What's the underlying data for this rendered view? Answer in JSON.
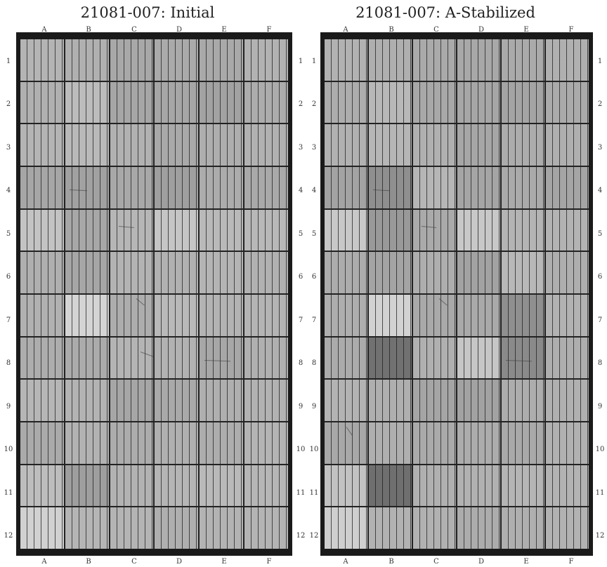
{
  "panels": [
    {
      "id": "initial",
      "title": "21081-007: Initial",
      "columns": [
        "A",
        "B",
        "C",
        "D",
        "E",
        "F"
      ],
      "rows": [
        "1",
        "2",
        "3",
        "4",
        "5",
        "6",
        "7",
        "8",
        "9",
        "10",
        "11",
        "12"
      ],
      "cell_shades": [
        [
          "#b4b4b4",
          "#b0b0b0",
          "#a8a8a8",
          "#aaaaaa",
          "#a9a9a9",
          "#b2b2b2"
        ],
        [
          "#b0b0b0",
          "#bcbcbc",
          "#a6a6a6",
          "#a6a6a6",
          "#a2a2a2",
          "#acacac"
        ],
        [
          "#b4b4b4",
          "#b9b9b9",
          "#b1b1b1",
          "#a9a9a9",
          "#aeaeae",
          "#b1b1b1"
        ],
        [
          "#a6a6a6",
          "#a1a1a1",
          "#a8a8a8",
          "#9f9f9f",
          "#acacac",
          "#a9a9a9"
        ],
        [
          "#c3c3c3",
          "#a7a7a7",
          "#b6b6b6",
          "#c5c5c5",
          "#b9b9b9",
          "#b8b8b8"
        ],
        [
          "#afafaf",
          "#a6a6a6",
          "#b3b3b3",
          "#b1b1b1",
          "#b4b4b4",
          "#b1b1b1"
        ],
        [
          "#b1b1b1",
          "#d4d4d4",
          "#adadad",
          "#b9b9b9",
          "#b3b3b3",
          "#b4b4b4"
        ],
        [
          "#adadad",
          "#ababab",
          "#b4b4b4",
          "#b2b2b2",
          "#a7a7a7",
          "#b0b0b0"
        ],
        [
          "#b6b6b6",
          "#b3b3b3",
          "#a6a6a6",
          "#a9a9a9",
          "#afafaf",
          "#b2b2b2"
        ],
        [
          "#aaaaaa",
          "#b2b2b2",
          "#acacac",
          "#b0b0b0",
          "#adadad",
          "#b4b4b4"
        ],
        [
          "#bdbdbd",
          "#9e9e9e",
          "#b2b2b2",
          "#b5b5b5",
          "#b9b9b9",
          "#b6b6b6"
        ],
        [
          "#d1d1d1",
          "#b5b5b5",
          "#b4b4b4",
          "#afafaf",
          "#b3b3b3",
          "#b4b4b4"
        ]
      ]
    },
    {
      "id": "a-stabilized",
      "title": "21081-007: A-Stabilized",
      "columns": [
        "A",
        "B",
        "C",
        "D",
        "E",
        "F"
      ],
      "rows": [
        "1",
        "2",
        "3",
        "4",
        "5",
        "6",
        "7",
        "8",
        "9",
        "10",
        "11",
        "12"
      ],
      "cell_shades": [
        [
          "#b2b2b2",
          "#afafaf",
          "#aaaaaa",
          "#a8a8a8",
          "#aaaaaa",
          "#b0b0b0"
        ],
        [
          "#adadad",
          "#b8b8b8",
          "#a8a8a8",
          "#a6a6a6",
          "#a4a4a4",
          "#aaaaaa"
        ],
        [
          "#b1b1b1",
          "#b6b6b6",
          "#b0b0b0",
          "#a6a6a6",
          "#acacac",
          "#afafaf"
        ],
        [
          "#a3a3a3",
          "#8f8f8f",
          "#b6b6b6",
          "#a5a5a5",
          "#aaaaaa",
          "#a5a5a5"
        ],
        [
          "#c8c8c8",
          "#999999",
          "#aaaaaa",
          "#c8c8c8",
          "#b4b4b4",
          "#b3b3b3"
        ],
        [
          "#acacac",
          "#a4a4a4",
          "#aeaeae",
          "#a2a2a2",
          "#b8b8b8",
          "#aeaeae"
        ],
        [
          "#aeaeae",
          "#d2d2d2",
          "#a9a9a9",
          "#a9a9a9",
          "#8f8f8f",
          "#b2b2b2"
        ],
        [
          "#ababab",
          "#717171",
          "#b0b0b0",
          "#c6c6c6",
          "#8a8a8a",
          "#aeaeae"
        ],
        [
          "#b3b3b3",
          "#afafaf",
          "#a5a5a5",
          "#a2a2a2",
          "#adadad",
          "#b0b0b0"
        ],
        [
          "#a8a8a8",
          "#afafaf",
          "#aaaaaa",
          "#acacac",
          "#a9a9a9",
          "#b1b1b1"
        ],
        [
          "#c2c2c2",
          "#6f6f6f",
          "#b0b0b0",
          "#b1b1b1",
          "#b5b5b5",
          "#b3b3b3"
        ],
        [
          "#cfcfcf",
          "#b2b2b2",
          "#b1b1b1",
          "#acacac",
          "#afafaf",
          "#b2b2b2"
        ]
      ]
    }
  ]
}
